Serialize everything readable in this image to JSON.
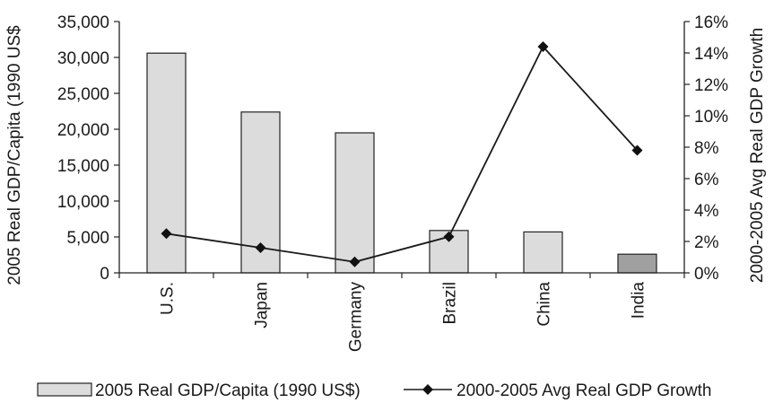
{
  "chart_data": {
    "type": "bar",
    "categories": [
      "U.S.",
      "Japan",
      "Germany",
      "Brazil",
      "China",
      "India"
    ],
    "series": [
      {
        "name": "2005 Real GDP/Capita (1990 US$)",
        "type": "bar",
        "axis": "left",
        "values": [
          30600,
          22400,
          19500,
          5900,
          5700,
          2600
        ],
        "colors": [
          "#dcdcdc",
          "#dcdcdc",
          "#dcdcdc",
          "#dcdcdc",
          "#dcdcdc",
          "#a0a0a0"
        ]
      },
      {
        "name": "2000-2005 Avg Real GDP Growth",
        "type": "line",
        "axis": "right",
        "marker": "diamond",
        "values": [
          2.5,
          1.6,
          0.7,
          2.3,
          14.4,
          7.8
        ]
      }
    ],
    "ylabel": "2005 Real GDP/Capita (1990 US$",
    "y2label": "2000-2005 Avg Real GDP Growth",
    "ylim": [
      0,
      35000
    ],
    "y2lim": [
      0,
      16
    ],
    "yticks": [
      "0",
      "5,000",
      "10,000",
      "15,000",
      "20,000",
      "25,000",
      "30,000",
      "35,000"
    ],
    "y2ticks": [
      "0%",
      "2%",
      "4%",
      "6%",
      "8%",
      "10%",
      "12%",
      "14%",
      "16%"
    ],
    "grid": false,
    "legend_position": "bottom"
  }
}
